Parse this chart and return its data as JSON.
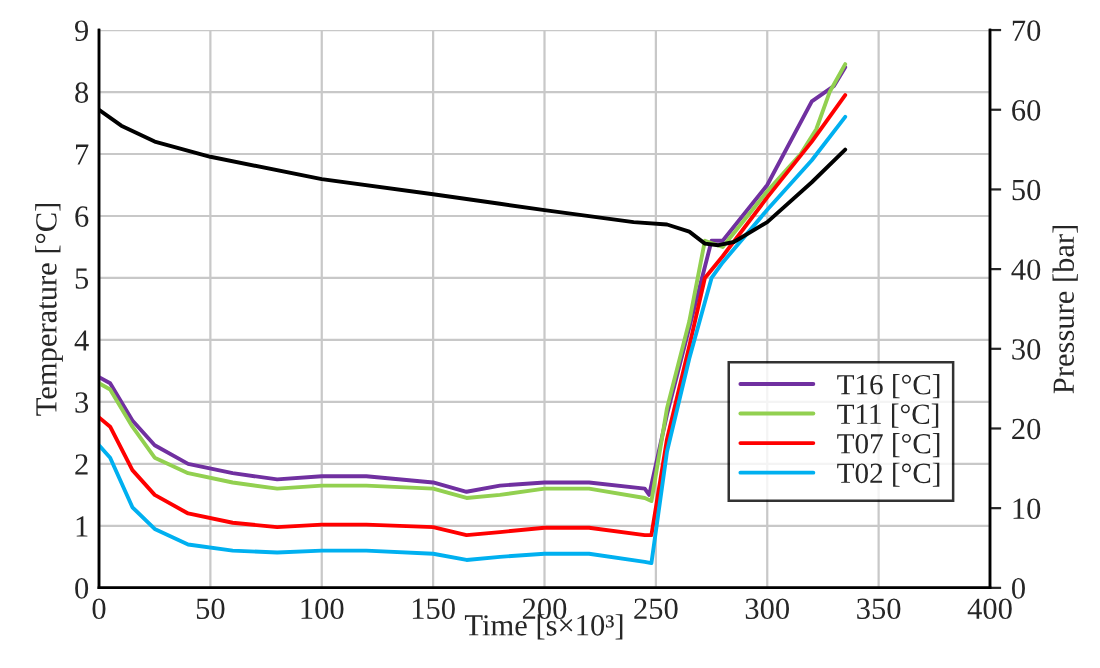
{
  "chart_data": {
    "type": "line",
    "xlabel": "Time [s×10³]",
    "ylabel": "Temperature [°C]",
    "y2label": "Pressure [bar]",
    "xlim": [
      0,
      400
    ],
    "xticks": [
      0,
      50,
      100,
      150,
      200,
      250,
      300,
      350,
      400
    ],
    "ylim": [
      0,
      9
    ],
    "yticks": [
      0,
      1,
      2,
      3,
      4,
      5,
      6,
      7,
      8,
      9
    ],
    "y2lim": [
      0,
      70
    ],
    "y2ticks": [
      0,
      10,
      20,
      30,
      40,
      50,
      60,
      70
    ],
    "grid": true,
    "legend": "bottom right",
    "marker": "none",
    "line_style": "solid",
    "series": [
      {
        "name": "T16 [°C]",
        "color": "#7030a0",
        "x": [
          0,
          5,
          15,
          25,
          40,
          60,
          80,
          100,
          120,
          150,
          165,
          180,
          200,
          220,
          245,
          247,
          255,
          265,
          275,
          280,
          300,
          320,
          330,
          335
        ],
        "values": [
          3.4,
          3.3,
          2.7,
          2.3,
          2.0,
          1.85,
          1.75,
          1.8,
          1.8,
          1.7,
          1.55,
          1.65,
          1.7,
          1.7,
          1.6,
          1.5,
          2.8,
          4.2,
          5.6,
          5.6,
          6.5,
          7.85,
          8.1,
          8.4
        ]
      },
      {
        "name": "T11 [°C]",
        "color": "#92d050",
        "x": [
          0,
          5,
          15,
          25,
          40,
          60,
          80,
          100,
          120,
          150,
          165,
          180,
          200,
          220,
          245,
          248,
          255,
          265,
          272,
          280,
          300,
          315,
          322,
          328,
          335
        ],
        "values": [
          3.3,
          3.2,
          2.6,
          2.1,
          1.85,
          1.7,
          1.6,
          1.65,
          1.65,
          1.6,
          1.45,
          1.5,
          1.6,
          1.6,
          1.45,
          1.4,
          2.9,
          4.3,
          5.6,
          5.5,
          6.4,
          7.0,
          7.4,
          8.0,
          8.45
        ]
      },
      {
        "name": "T07 [°C]",
        "color": "#ff0000",
        "x": [
          0,
          5,
          15,
          25,
          40,
          60,
          80,
          100,
          120,
          150,
          165,
          180,
          200,
          220,
          245,
          248,
          255,
          265,
          272,
          280,
          300,
          320,
          335
        ],
        "values": [
          2.75,
          2.6,
          1.9,
          1.5,
          1.2,
          1.05,
          0.98,
          1.02,
          1.02,
          0.98,
          0.85,
          0.9,
          0.97,
          0.97,
          0.85,
          0.85,
          2.4,
          3.9,
          5.0,
          5.35,
          6.3,
          7.2,
          7.95
        ]
      },
      {
        "name": "T02 [°C]",
        "color": "#00b0f0",
        "x": [
          0,
          5,
          15,
          25,
          40,
          60,
          80,
          100,
          120,
          150,
          165,
          180,
          200,
          220,
          245,
          248,
          255,
          265,
          275,
          280,
          300,
          320,
          335
        ],
        "values": [
          2.3,
          2.1,
          1.3,
          0.95,
          0.7,
          0.6,
          0.57,
          0.6,
          0.6,
          0.55,
          0.45,
          0.5,
          0.55,
          0.55,
          0.42,
          0.4,
          2.2,
          3.7,
          5.0,
          5.25,
          6.1,
          6.9,
          7.6
        ]
      },
      {
        "color": "#000000",
        "axis": "y2",
        "x": [
          0,
          10,
          25,
          50,
          100,
          150,
          180,
          200,
          240,
          255,
          265,
          272,
          278,
          285,
          300,
          320,
          335
        ],
        "values": [
          60.0,
          58.0,
          56.0,
          54.1,
          51.3,
          49.4,
          48.2,
          47.4,
          45.9,
          45.6,
          44.7,
          43.2,
          43.0,
          43.4,
          45.9,
          50.9,
          55.0
        ]
      }
    ]
  }
}
